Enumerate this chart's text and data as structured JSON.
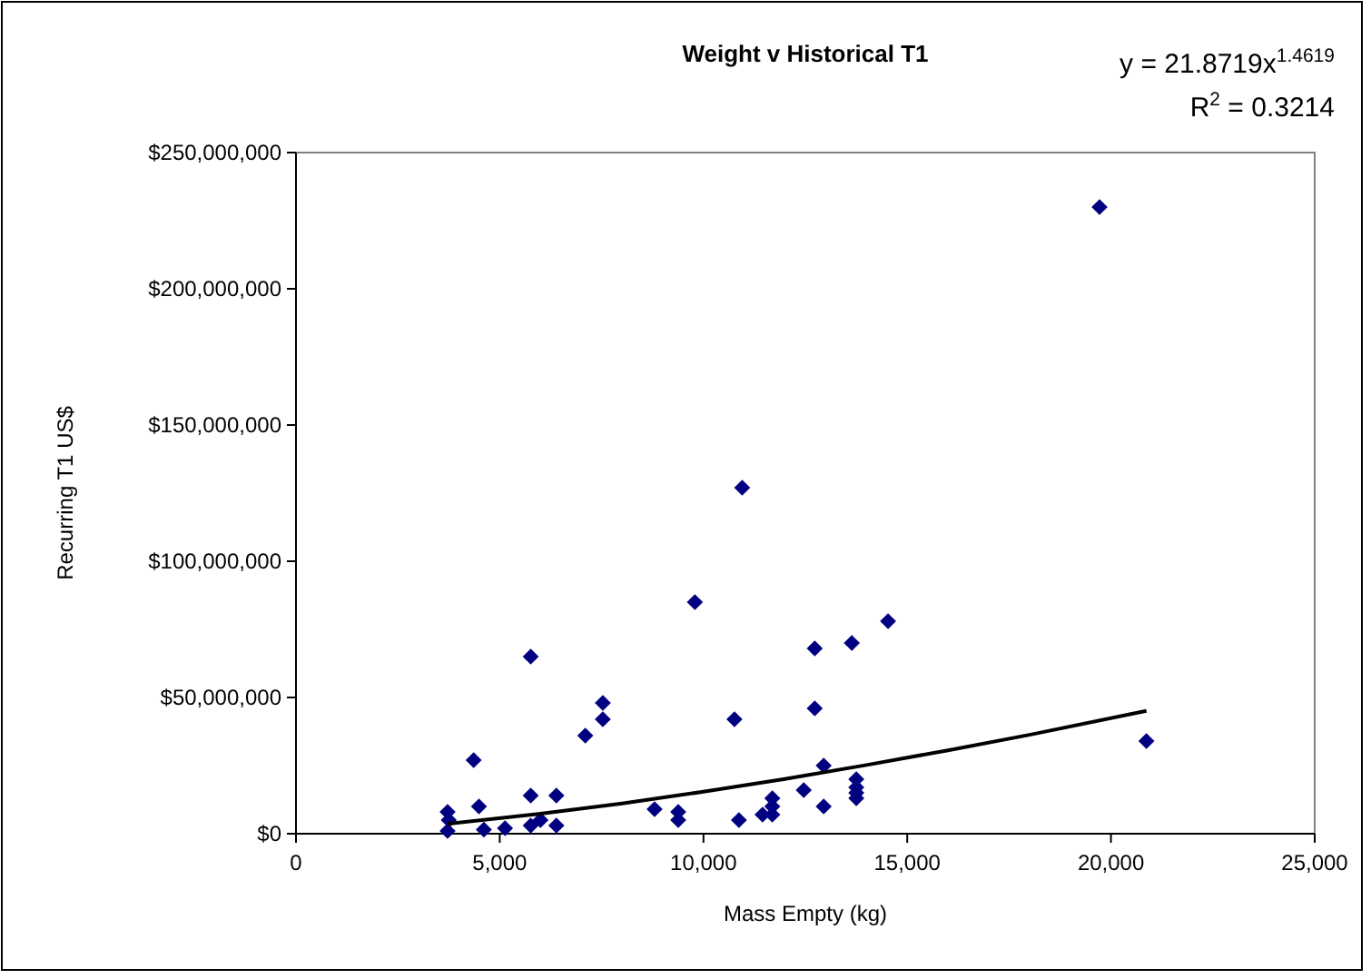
{
  "chart_data": {
    "type": "scatter",
    "title": "Weight v Historical T1",
    "xlabel": "Mass Empty (kg)",
    "ylabel": "Recurring T1 US$",
    "annotations": [
      "y = 21.8719x$^{1.4619}$",
      "R$^{2}$ = 0.3214"
    ],
    "xlim": [
      0,
      25000
    ],
    "xticks": [
      {
        "value": 0,
        "label": "0"
      },
      {
        "value": 5000,
        "label": "5,000"
      },
      {
        "value": 10000,
        "label": "10,000"
      },
      {
        "value": 15000,
        "label": "15,000"
      },
      {
        "value": 20000,
        "label": "20,000"
      },
      {
        "value": 25000,
        "label": "25,000"
      }
    ],
    "ylim": [
      0,
      250000000
    ],
    "yticks": [
      {
        "value": 0,
        "label": "$0"
      },
      {
        "value": 50000000,
        "label": "$50,000,000"
      },
      {
        "value": 100000000,
        "label": "$100,000,000"
      },
      {
        "value": 150000000,
        "label": "$150,000,000"
      },
      {
        "value": 200000000,
        "label": "$200,000,000"
      },
      {
        "value": 250000000,
        "label": "$250,000,000"
      }
    ],
    "grid": false,
    "series": [
      {
        "color": "#000080",
        "marker": "diamond",
        "x": [
          5760,
          3720,
          3750,
          3720,
          4360,
          4490,
          4610,
          5130,
          5760,
          5760,
          6390,
          6390,
          6000,
          7100,
          7530,
          7530,
          8800,
          9790,
          9380,
          9380,
          10760,
          10870,
          11450,
          11690,
          11690,
          11690,
          12460,
          12730,
          12730,
          12950,
          12950,
          13640,
          13750,
          13750,
          13750,
          13750,
          14530,
          20870,
          19720,
          10950
        ],
        "values": [
          65000000,
          8000000,
          5000000,
          1000000,
          27000000,
          10000000,
          1500000,
          2000000,
          14000000,
          3000000,
          3000000,
          14000000,
          5000000,
          36000000,
          42000000,
          48000000,
          9000000,
          85000000,
          8000000,
          5000000,
          42000000,
          5000000,
          7000000,
          7000000,
          13000000,
          10000000,
          16000000,
          68000000,
          46000000,
          25000000,
          10000000,
          70000000,
          20000000,
          17000000,
          15000000,
          13000000,
          78000000,
          34000000,
          230000000,
          127000000
        ]
      },
      {
        "type": "line",
        "color": "#000000",
        "marker": "none",
        "line_style": "solid",
        "x": [
          3720,
          6000,
          8000,
          10000,
          12000,
          14000,
          16000,
          18000,
          20870
        ],
        "values": [
          3600000,
          7300000,
          11100000,
          15400000,
          20100000,
          25200000,
          30600000,
          36300000,
          45100000
        ]
      }
    ]
  }
}
